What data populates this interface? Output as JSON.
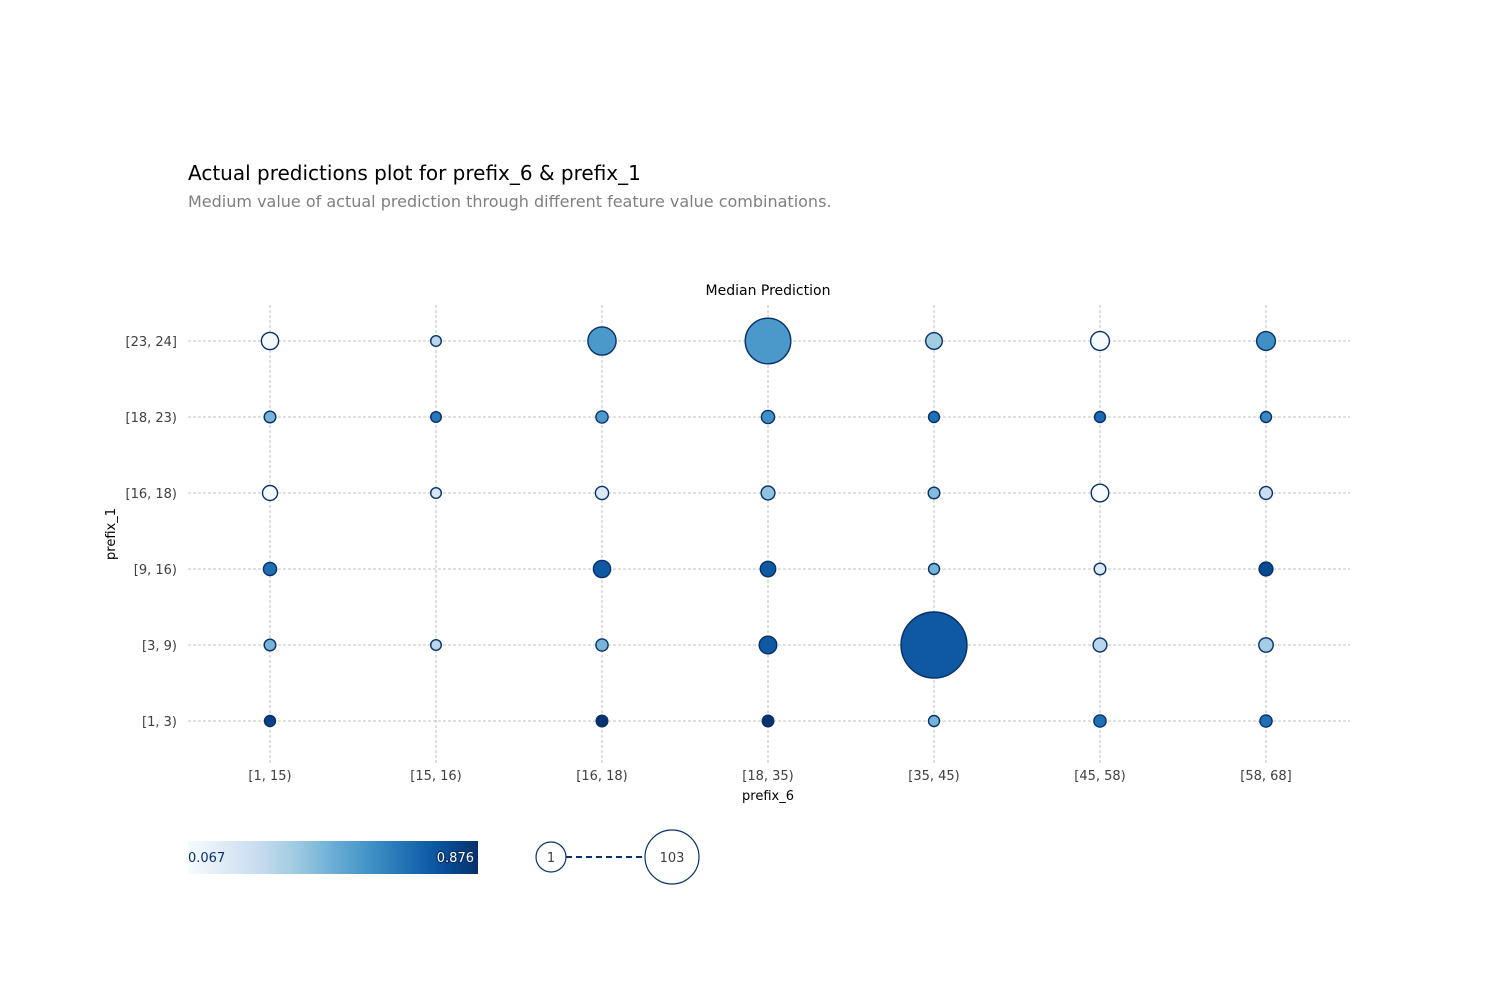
{
  "chart_data": {
    "type": "scatter",
    "title": "Actual predictions plot for prefix_6 & prefix_1",
    "subtitle": "Medium value of actual prediction through different feature value combinations.",
    "plot_title": "Median Prediction",
    "xlabel": "prefix_6",
    "ylabel": "prefix_1",
    "x_categories": [
      "[1, 15)",
      "[15, 16)",
      "[16, 18)",
      "[18, 35)",
      "[35, 45)",
      "[45, 58)",
      "[58, 68]"
    ],
    "y_categories": [
      "[1, 3)",
      "[3, 9)",
      "[9, 16)",
      "[16, 18)",
      "[18, 23)",
      "[23, 24]"
    ],
    "color_range": [
      0.067,
      0.876
    ],
    "size_range": [
      1,
      103
    ],
    "colorbar": {
      "min_label": "0.067",
      "max_label": "0.876",
      "colormap": "Blues"
    },
    "size_legend": {
      "min_label": "1",
      "max_label": "103"
    },
    "points": [
      {
        "x": "[1, 15)",
        "y": "[23, 24]",
        "value": 0.08,
        "count": 14
      },
      {
        "x": "[15, 16)",
        "y": "[23, 24]",
        "value": 0.3,
        "count": 2
      },
      {
        "x": "[16, 18)",
        "y": "[23, 24]",
        "value": 0.55,
        "count": 34
      },
      {
        "x": "[18, 35)",
        "y": "[23, 24]",
        "value": 0.55,
        "count": 66
      },
      {
        "x": "[35, 45)",
        "y": "[23, 24]",
        "value": 0.36,
        "count": 13
      },
      {
        "x": "[45, 58)",
        "y": "[23, 24]",
        "value": 0.07,
        "count": 17
      },
      {
        "x": "[58, 68]",
        "y": "[23, 24]",
        "value": 0.58,
        "count": 17
      },
      {
        "x": "[1, 15)",
        "y": "[18, 23)",
        "value": 0.45,
        "count": 4
      },
      {
        "x": "[15, 16)",
        "y": "[18, 23)",
        "value": 0.65,
        "count": 2
      },
      {
        "x": "[16, 18)",
        "y": "[18, 23)",
        "value": 0.55,
        "count": 5
      },
      {
        "x": "[18, 35)",
        "y": "[18, 23)",
        "value": 0.58,
        "count": 7
      },
      {
        "x": "[35, 45)",
        "y": "[18, 23)",
        "value": 0.68,
        "count": 3
      },
      {
        "x": "[45, 58)",
        "y": "[18, 23)",
        "value": 0.7,
        "count": 3
      },
      {
        "x": "[58, 68]",
        "y": "[18, 23)",
        "value": 0.6,
        "count": 3
      },
      {
        "x": "[1, 15)",
        "y": "[16, 18)",
        "value": 0.08,
        "count": 10
      },
      {
        "x": "[15, 16)",
        "y": "[16, 18)",
        "value": 0.2,
        "count": 2
      },
      {
        "x": "[16, 18)",
        "y": "[16, 18)",
        "value": 0.18,
        "count": 7
      },
      {
        "x": "[18, 35)",
        "y": "[16, 18)",
        "value": 0.4,
        "count": 8
      },
      {
        "x": "[35, 45)",
        "y": "[16, 18)",
        "value": 0.42,
        "count": 4
      },
      {
        "x": "[45, 58)",
        "y": "[16, 18)",
        "value": 0.07,
        "count": 15
      },
      {
        "x": "[58, 68]",
        "y": "[16, 18)",
        "value": 0.25,
        "count": 6
      },
      {
        "x": "[1, 15)",
        "y": "[9, 16)",
        "value": 0.68,
        "count": 7
      },
      {
        "x": "[16, 18)",
        "y": "[9, 16)",
        "value": 0.75,
        "count": 14
      },
      {
        "x": "[18, 35)",
        "y": "[9, 16)",
        "value": 0.75,
        "count": 11
      },
      {
        "x": "[35, 45)",
        "y": "[9, 16)",
        "value": 0.45,
        "count": 3
      },
      {
        "x": "[45, 58)",
        "y": "[9, 16)",
        "value": 0.18,
        "count": 4
      },
      {
        "x": "[58, 68]",
        "y": "[9, 16)",
        "value": 0.8,
        "count": 8
      },
      {
        "x": "[1, 15)",
        "y": "[3, 9)",
        "value": 0.45,
        "count": 4
      },
      {
        "x": "[15, 16)",
        "y": "[3, 9)",
        "value": 0.3,
        "count": 2
      },
      {
        "x": "[16, 18)",
        "y": "[3, 9)",
        "value": 0.45,
        "count": 5
      },
      {
        "x": "[18, 35)",
        "y": "[3, 9)",
        "value": 0.75,
        "count": 15
      },
      {
        "x": "[35, 45)",
        "y": "[3, 9)",
        "value": 0.75,
        "count": 103
      },
      {
        "x": "[45, 58)",
        "y": "[3, 9)",
        "value": 0.3,
        "count": 8
      },
      {
        "x": "[58, 68]",
        "y": "[3, 9)",
        "value": 0.35,
        "count": 9
      },
      {
        "x": "[1, 15)",
        "y": "[1, 3)",
        "value": 0.82,
        "count": 3
      },
      {
        "x": "[16, 18)",
        "y": "[1, 3)",
        "value": 0.87,
        "count": 4
      },
      {
        "x": "[18, 35)",
        "y": "[1, 3)",
        "value": 0.87,
        "count": 4
      },
      {
        "x": "[35, 45)",
        "y": "[1, 3)",
        "value": 0.45,
        "count": 3
      },
      {
        "x": "[45, 58)",
        "y": "[1, 3)",
        "value": 0.68,
        "count": 5
      },
      {
        "x": "[58, 68]",
        "y": "[1, 3)",
        "value": 0.68,
        "count": 5
      }
    ]
  },
  "colors": {
    "bubble_edge": "#08306b",
    "grid": "#b0b0b0",
    "colormap_stops": [
      "#f7fbff",
      "#deebf7",
      "#c6dbef",
      "#9ecae1",
      "#6baed6",
      "#4292c6",
      "#2171b5",
      "#08519c",
      "#08306b"
    ]
  }
}
